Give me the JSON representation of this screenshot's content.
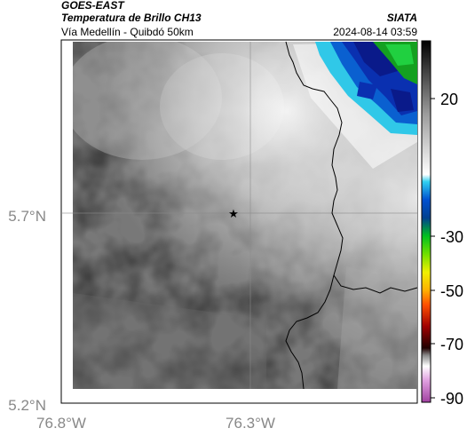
{
  "header": {
    "satellite": "GOES-EAST",
    "product": "Temperatura de Brillo CH13",
    "region": "Vía Medellín - Quibdó 50km",
    "organization": "SIATA",
    "timestamp": "2024-08-14 03:59"
  },
  "map": {
    "x_ticks": [
      "76.8°W",
      "76.3°W"
    ],
    "y_ticks": [
      "5.7°N",
      "5.2°N"
    ],
    "marker": "star"
  },
  "colorbar": {
    "ticks": [
      "20",
      "-30",
      "-50",
      "-70",
      "-90"
    ],
    "colors": [
      "#000000",
      "#7a7a7a",
      "#ffffff",
      "#1aa0d0",
      "#0a20a0",
      "#00c020",
      "#f0f000",
      "#e02000",
      "#500000",
      "#b040b0"
    ]
  }
}
